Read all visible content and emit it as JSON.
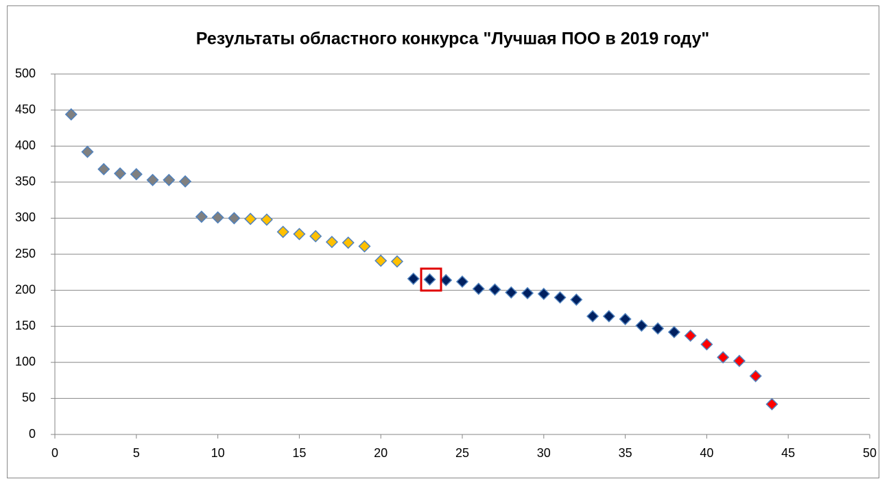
{
  "chart_data": {
    "type": "scatter",
    "title": "Результаты областного конкурса \"Лучшая ПОО в 2019 году\"",
    "series": [
      {
        "color": "#808080",
        "x": [
          1,
          2,
          3,
          4,
          5,
          6,
          7,
          8,
          9,
          10,
          11
        ],
        "values": [
          444,
          392,
          368,
          362,
          361,
          353,
          353,
          351,
          302,
          301,
          300
        ]
      },
      {
        "color": "#ffc000",
        "x": [
          12,
          13,
          14,
          15,
          16,
          17,
          18,
          19,
          20,
          21
        ],
        "values": [
          299,
          298,
          281,
          278,
          275,
          267,
          266,
          261,
          241,
          240
        ]
      },
      {
        "color": "#002060",
        "x": [
          22,
          23,
          24,
          25,
          26,
          27,
          28,
          29,
          30,
          31,
          32,
          33,
          34,
          35,
          36,
          37,
          38
        ],
        "values": [
          216,
          215,
          214,
          212,
          202,
          201,
          197,
          196,
          195,
          190,
          187,
          164,
          164,
          160,
          151,
          147,
          142
        ]
      },
      {
        "color": "#ff0000",
        "x": [
          39,
          40,
          41,
          42,
          43,
          44
        ],
        "values": [
          137,
          125,
          107,
          102,
          81,
          42
        ]
      }
    ],
    "xlim": [
      0,
      50
    ],
    "xticks": [
      0,
      5,
      10,
      15,
      20,
      25,
      30,
      35,
      40,
      45,
      50
    ],
    "ylim": [
      0,
      500
    ],
    "yticks": [
      0,
      50,
      100,
      150,
      200,
      250,
      300,
      350,
      400,
      450,
      500
    ],
    "grid": true
  }
}
